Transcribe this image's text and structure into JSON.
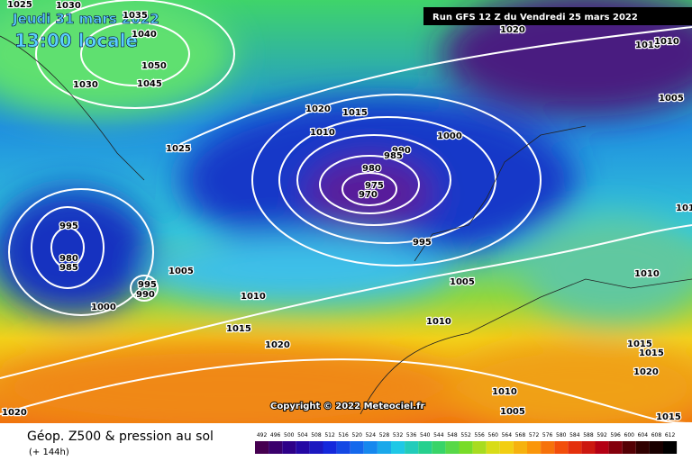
{
  "header": {
    "date": "Jeudi 31 mars 2022",
    "time": "13:00 locale",
    "run": "Run GFS 12 Z du Vendredi 25 mars 2022"
  },
  "copyright": "Copyright © 2022 Meteociel.fr",
  "footer": {
    "title": "Géop. Z500 & pression au sol",
    "lead": "(+ 144h)"
  },
  "isobar_labels": [
    "1025",
    "1030",
    "1035",
    "1040",
    "1050",
    "1045",
    "1030",
    "1025",
    "1020",
    "1015",
    "1010",
    "1000",
    "990",
    "985",
    "980",
    "975",
    "970",
    "995",
    "995",
    "980",
    "985",
    "1005",
    "995",
    "990",
    "1000",
    "1010",
    "1015",
    "1020",
    "1005",
    "1010",
    "1010",
    "1005",
    "1020",
    "1010",
    "1015",
    "1015",
    "1020",
    "1015",
    "1010",
    "1010",
    "1005",
    "1020",
    "101"
  ],
  "color_scale": [
    492,
    496,
    500,
    504,
    508,
    512,
    516,
    520,
    524,
    528,
    532,
    536,
    540,
    544,
    548,
    552,
    556,
    560,
    564,
    568,
    572,
    576,
    580,
    584,
    588,
    592,
    596,
    600,
    604,
    608,
    612
  ]
}
